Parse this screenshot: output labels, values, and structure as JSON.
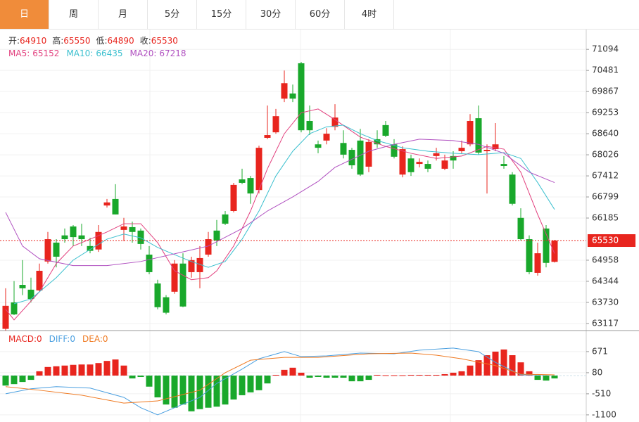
{
  "chart_data": {
    "type": "candlestick",
    "tabs": [
      "日",
      "周",
      "月",
      "5分",
      "15分",
      "30分",
      "60分",
      "4时"
    ],
    "active_tab": 0,
    "up_color": "#e8251e",
    "down_color": "#19a82b",
    "ylim": [
      62910,
      71610
    ],
    "yticks": [
      71094,
      70481,
      69867,
      69253,
      68640,
      68026,
      67412,
      66799,
      66185,
      64958,
      64344,
      63730,
      63117
    ],
    "ohlc_labels": [
      "开:",
      "高:",
      "低:",
      "收:"
    ],
    "candles": [
      [
        62960,
        64140,
        62910,
        63630
      ],
      [
        63730,
        64350,
        63360,
        63380
      ],
      [
        64240,
        64960,
        63940,
        64140
      ],
      [
        64100,
        64450,
        63730,
        63830
      ],
      [
        64080,
        64860,
        64040,
        64650
      ],
      [
        64920,
        65780,
        64860,
        65570
      ],
      [
        65470,
        65570,
        64750,
        65060
      ],
      [
        65680,
        65880,
        65470,
        65570
      ],
      [
        65940,
        65980,
        65370,
        65630
      ],
      [
        65680,
        66020,
        65370,
        65570
      ],
      [
        65370,
        65610,
        65160,
        65230
      ],
      [
        65270,
        65980,
        65200,
        65780
      ],
      [
        66550,
        66740,
        66490,
        66640
      ],
      [
        66740,
        67170,
        66290,
        66290
      ],
      [
        65840,
        66190,
        65510,
        65940
      ],
      [
        65920,
        66080,
        65470,
        65780
      ],
      [
        65820,
        65880,
        65270,
        65430
      ],
      [
        65120,
        65370,
        64550,
        64610
      ],
      [
        64280,
        64390,
        63530,
        63590
      ],
      [
        63880,
        63940,
        63380,
        63430
      ],
      [
        64040,
        64960,
        63980,
        64860
      ],
      [
        64860,
        65160,
        63590,
        63610
      ],
      [
        64610,
        65060,
        64450,
        64960
      ],
      [
        64610,
        65370,
        64140,
        65020
      ],
      [
        65120,
        65780,
        65060,
        65570
      ],
      [
        65820,
        66130,
        65370,
        65530
      ],
      [
        66290,
        66390,
        65980,
        66020
      ],
      [
        66390,
        67210,
        66350,
        67150
      ],
      [
        67310,
        67620,
        67170,
        67210
      ],
      [
        67350,
        67410,
        66600,
        66900
      ],
      [
        67000,
        68290,
        66900,
        68230
      ],
      [
        68520,
        69460,
        68480,
        68600
      ],
      [
        68680,
        69360,
        68640,
        69150
      ],
      [
        69660,
        70480,
        69560,
        70110
      ],
      [
        69810,
        70070,
        69560,
        69660
      ],
      [
        70690,
        70730,
        68680,
        68740
      ],
      [
        69010,
        69460,
        68600,
        68740
      ],
      [
        68330,
        68440,
        68070,
        68230
      ],
      [
        68440,
        68800,
        68330,
        68640
      ],
      [
        68840,
        69500,
        68740,
        69110
      ],
      [
        68370,
        68740,
        67920,
        68030
      ],
      [
        68170,
        68230,
        67620,
        67720
      ],
      [
        68440,
        68780,
        67410,
        67450
      ],
      [
        67680,
        68480,
        67520,
        68400
      ],
      [
        68480,
        68740,
        68230,
        68330
      ],
      [
        68890,
        69010,
        68540,
        68580
      ],
      [
        68330,
        68480,
        67920,
        67970
      ],
      [
        67450,
        68270,
        67370,
        68190
      ],
      [
        67920,
        68030,
        67410,
        67520
      ],
      [
        67760,
        67920,
        67660,
        67820
      ],
      [
        67760,
        67860,
        67520,
        67620
      ],
      [
        67990,
        68230,
        67860,
        68070
      ],
      [
        67620,
        68030,
        67580,
        67860
      ],
      [
        67990,
        68130,
        67620,
        67860
      ],
      [
        68130,
        68440,
        68070,
        68230
      ],
      [
        68330,
        69210,
        68270,
        69010
      ],
      [
        69090,
        69460,
        68030,
        68090
      ],
      [
        68130,
        68330,
        66900,
        68170
      ],
      [
        68190,
        68950,
        68130,
        68330
      ],
      [
        67760,
        67990,
        67620,
        67700
      ],
      [
        67450,
        67520,
        66550,
        66600
      ],
      [
        66190,
        66470,
        65530,
        65570
      ],
      [
        65570,
        65680,
        64550,
        64610
      ],
      [
        64590,
        65470,
        64510,
        65160
      ],
      [
        65880,
        65980,
        64750,
        64880
      ],
      [
        64910,
        65550,
        64890,
        65530
      ]
    ],
    "ma": [
      {
        "name": "MA5:",
        "color": "#e2407e",
        "x": [
          0,
          1,
          4,
          6,
          8,
          10,
          12,
          14,
          16,
          18,
          20,
          22,
          24,
          25,
          27,
          29,
          30,
          31,
          33,
          35,
          37,
          39,
          42,
          45,
          48,
          51,
          54,
          57,
          59,
          61,
          63,
          65
        ],
        "values": [
          63530,
          63220,
          64040,
          64860,
          65370,
          65570,
          65780,
          66020,
          66020,
          65470,
          64650,
          64390,
          64450,
          64650,
          65370,
          66390,
          67000,
          67620,
          68640,
          69250,
          69360,
          69050,
          68540,
          68270,
          68070,
          67920,
          67990,
          68270,
          68190,
          67520,
          66290,
          65152
        ]
      },
      {
        "name": "MA10:",
        "color": "#3cc0cf",
        "x": [
          1,
          3,
          6,
          8,
          10,
          12,
          14,
          16,
          18,
          20,
          22,
          24,
          26,
          28,
          30,
          32,
          34,
          36,
          38,
          40,
          42,
          44,
          47,
          50,
          53,
          56,
          59,
          61,
          63,
          65
        ],
        "values": [
          63690,
          63830,
          64450,
          64960,
          65270,
          65570,
          65720,
          65610,
          65330,
          65120,
          64920,
          64750,
          64920,
          65570,
          66390,
          67410,
          68130,
          68640,
          68840,
          68890,
          68640,
          68440,
          68230,
          68130,
          68070,
          68030,
          68090,
          67920,
          67218,
          66435
        ]
      },
      {
        "name": "MA20:",
        "color": "#b050c0",
        "x": [
          0,
          2,
          4,
          8,
          12,
          16,
          21,
          24,
          28,
          31,
          34,
          37,
          39,
          43,
          46,
          49,
          53,
          56,
          59,
          62,
          65
        ],
        "values": [
          66350,
          65370,
          65000,
          64800,
          64800,
          64920,
          65200,
          65370,
          65880,
          66390,
          66800,
          67250,
          67660,
          68130,
          68330,
          68480,
          68440,
          68330,
          68070,
          67520,
          67218
        ]
      }
    ],
    "macd": {
      "ylim": [
        -1260,
        1220
      ],
      "yticks": [
        671,
        80,
        -510,
        -1100
      ],
      "bars": [
        -280,
        -240,
        -180,
        -120,
        120,
        240,
        260,
        280,
        300,
        310,
        310,
        350,
        410,
        450,
        280,
        -80,
        -40,
        -310,
        -610,
        -810,
        -900,
        -810,
        -1000,
        -940,
        -900,
        -870,
        -810,
        -670,
        -550,
        -470,
        -410,
        -220,
        20,
        160,
        220,
        80,
        -60,
        -40,
        -60,
        -60,
        -60,
        -160,
        -160,
        -120,
        20,
        10,
        10,
        10,
        20,
        20,
        20,
        20,
        40,
        80,
        120,
        280,
        430,
        570,
        670,
        730,
        570,
        370,
        120,
        -120,
        -140,
        -80
      ],
      "legend": [
        {
          "name": "MACD:",
          "value": 0,
          "color": "#e8251e"
        },
        {
          "name": "DIFF:",
          "value": 0,
          "color": "#4a9fe0"
        },
        {
          "name": "DEA:",
          "value": 0,
          "color": "#ef7a22"
        }
      ],
      "lines": [
        {
          "color": "#4a9fe0",
          "x": [
            0,
            3,
            6,
            10,
            14,
            16,
            18,
            20,
            23,
            25,
            28,
            30,
            33,
            35,
            38,
            42,
            46,
            49,
            53,
            56,
            58,
            61,
            65
          ],
          "values": [
            -510,
            -370,
            -310,
            -350,
            -610,
            -900,
            -1100,
            -900,
            -610,
            -220,
            180,
            470,
            670,
            530,
            550,
            630,
            610,
            710,
            770,
            670,
            370,
            20,
            20
          ]
        },
        {
          "color": "#ef7a22",
          "x": [
            0,
            4,
            9,
            14,
            18,
            23,
            26,
            29,
            33,
            37,
            43,
            48,
            51,
            54,
            58,
            61,
            65
          ],
          "values": [
            -310,
            -410,
            -550,
            -770,
            -710,
            -410,
            80,
            430,
            510,
            510,
            610,
            630,
            570,
            470,
            280,
            40,
            20
          ]
        }
      ]
    }
  }
}
